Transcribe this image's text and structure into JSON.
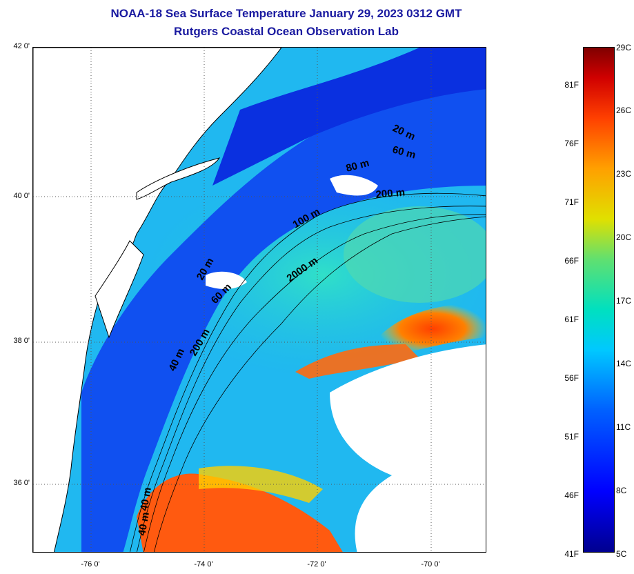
{
  "title": "NOAA-18 Sea Surface Temperature January 29, 2023 0312 GMT",
  "subtitle": "Rutgers Coastal Ocean Observation Lab",
  "map": {
    "lat_labels": [
      "42 0'",
      "40 0'",
      "38 0'",
      "36 0'"
    ],
    "lon_labels": [
      "-76 0'",
      "-74 0'",
      "-72 0'",
      "-70 0'"
    ],
    "contour_labels": [
      "20 m",
      "60 m",
      "80 m",
      "200 m",
      "100 m",
      "2000 m",
      "20 m",
      "60 m",
      "40 m",
      "200 m",
      "40 m",
      "40 m"
    ],
    "land_color": "#ffffff",
    "cloud_color": "#ffffff",
    "coast_color": "#000000"
  },
  "colorbar": {
    "fahrenheit": [
      "81F",
      "76F",
      "71F",
      "66F",
      "61F",
      "56F",
      "51F",
      "46F",
      "41F"
    ],
    "celsius": [
      "29C",
      "26C",
      "23C",
      "20C",
      "17C",
      "14C",
      "11C",
      "8C",
      "5C"
    ],
    "colors": [
      "#00008f",
      "#0000ff",
      "#0060ff",
      "#00c8ff",
      "#60e070",
      "#e0e000",
      "#ffa000",
      "#ff4000",
      "#d00000",
      "#800000"
    ]
  }
}
